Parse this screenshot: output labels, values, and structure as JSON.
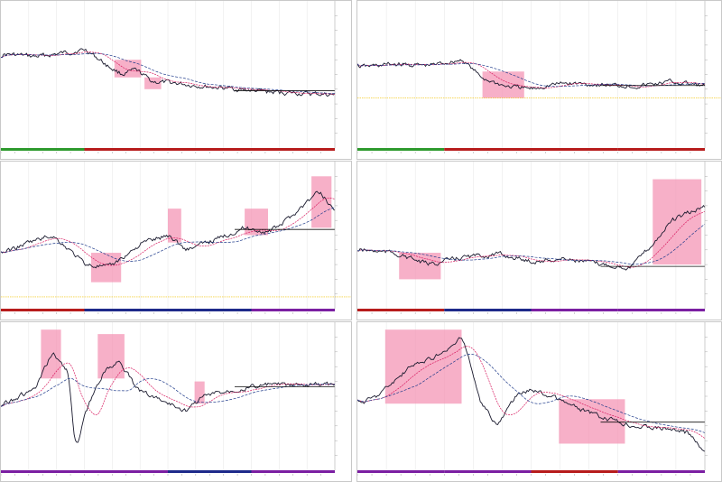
{
  "colors": {
    "price_line": "#1a1a2e",
    "price_up": "#2e7d32",
    "ma_fast": "#d81b60",
    "ma_slow": "#1e3a8a",
    "zone_fill": "#f48fb1",
    "level_line": "#111111",
    "level_yellow": "#f2c200",
    "grid": "#e6e6e6",
    "bar_green": "#2e9a2e",
    "bar_red": "#b71c1c",
    "bar_blue": "#1e2a8a",
    "bar_purple": "#7b1fa2"
  },
  "window": {
    "layout": "3x2 chart grid"
  },
  "panels": [
    {
      "id": "chart-1",
      "title": "",
      "trend": "flat-down"
    },
    {
      "id": "chart-2",
      "title": "",
      "trend": "flat"
    },
    {
      "id": "chart-3",
      "title": "",
      "trend": "up"
    },
    {
      "id": "chart-4",
      "title": "",
      "trend": "flat-up"
    },
    {
      "id": "chart-5",
      "title": "",
      "trend": "volatile"
    },
    {
      "id": "chart-6",
      "title": "",
      "trend": "down"
    }
  ]
}
